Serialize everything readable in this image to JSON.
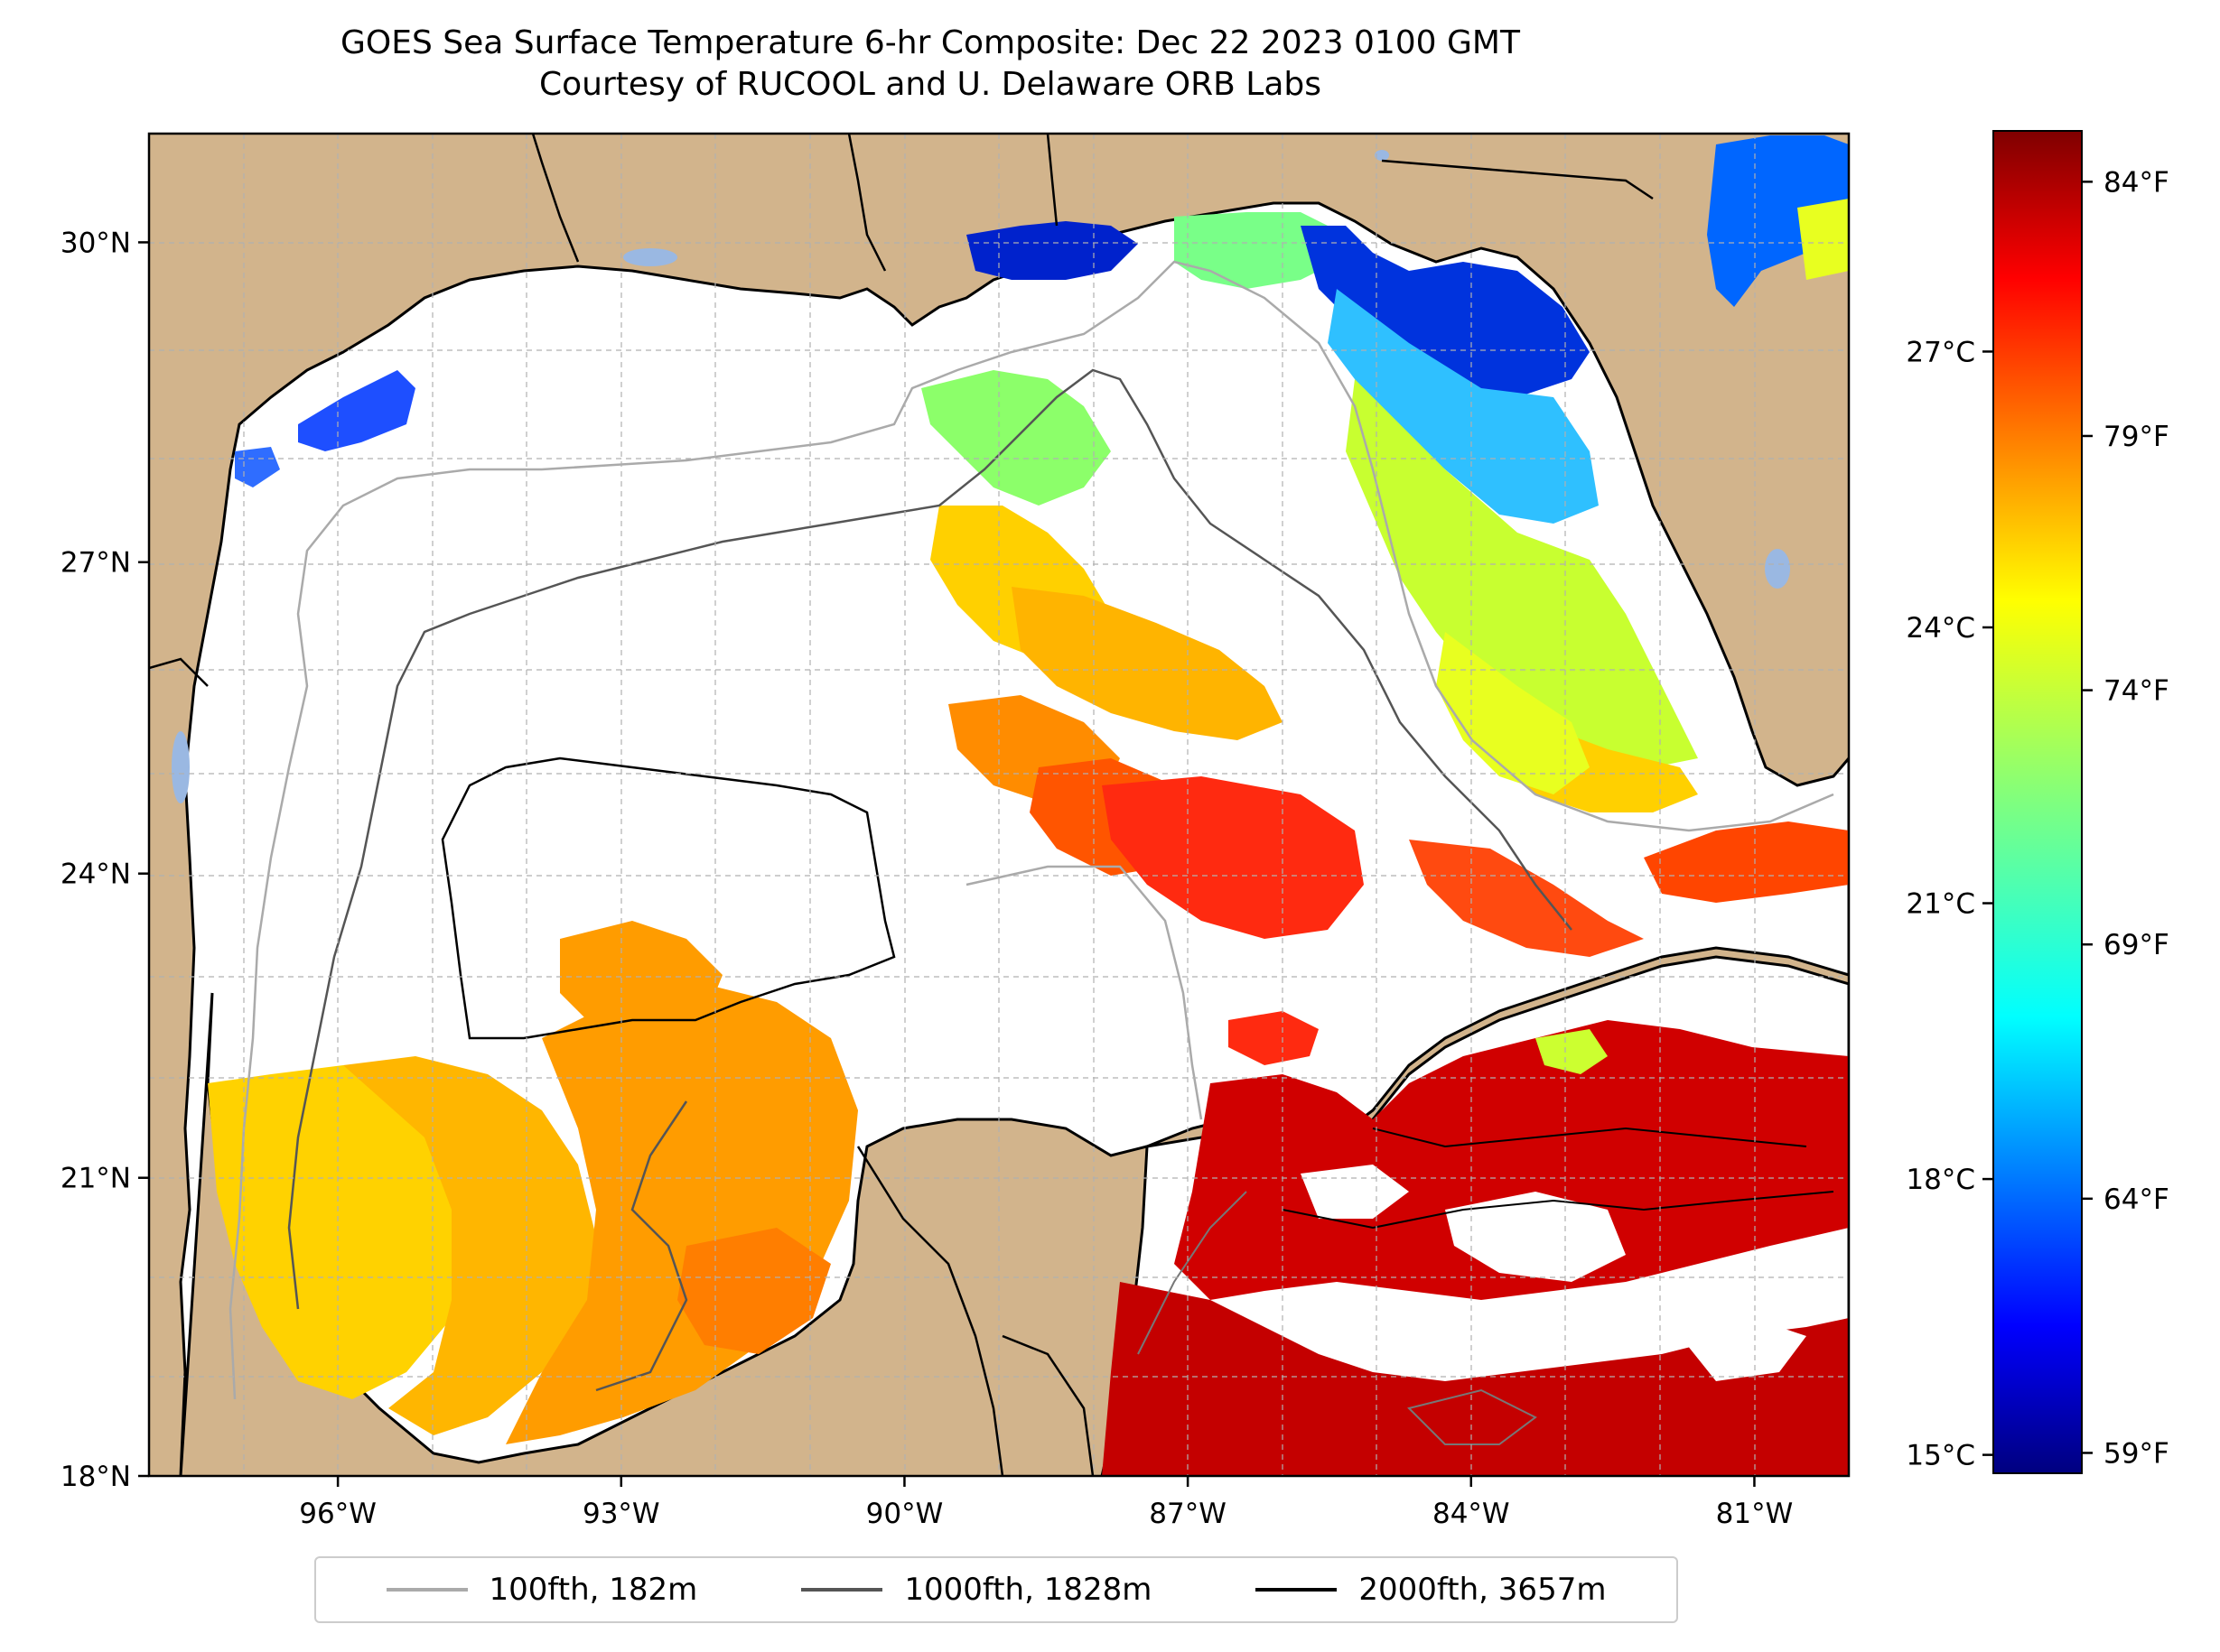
{
  "title_line1": "GOES Sea Surface Temperature 6-hr Composite: Dec 22 2023 0100 GMT",
  "title_line2": "Courtesy of RUCOOL and U. Delaware ORB Labs",
  "lat_ticks": [
    {
      "lat": 30,
      "label": "30°N"
    },
    {
      "lat": 27,
      "label": "27°N"
    },
    {
      "lat": 24,
      "label": "24°N"
    },
    {
      "lat": 21,
      "label": "21°N"
    },
    {
      "lat": 18,
      "label": "18°N"
    }
  ],
  "lon_ticks": [
    {
      "lon": -96,
      "label": "96°W"
    },
    {
      "lon": -93,
      "label": "93°W"
    },
    {
      "lon": -90,
      "label": "90°W"
    },
    {
      "lon": -87,
      "label": "87°W"
    },
    {
      "lon": -84,
      "label": "84°W"
    },
    {
      "lon": -81,
      "label": "81°W"
    }
  ],
  "map_extent": {
    "lon_min": -98,
    "lon_max": -80,
    "lat_min": 18,
    "lat_max": 31
  },
  "colorbar": {
    "celsius_ticks": [
      {
        "value": 27,
        "label": "27°C"
      },
      {
        "value": 24,
        "label": "24°C"
      },
      {
        "value": 21,
        "label": "21°C"
      },
      {
        "value": 18,
        "label": "18°C"
      },
      {
        "value": 15,
        "label": "15°C"
      }
    ],
    "fahrenheit_ticks": [
      {
        "value": 84,
        "label": "84°F"
      },
      {
        "value": 79,
        "label": "79°F"
      },
      {
        "value": 74,
        "label": "74°F"
      },
      {
        "value": 69,
        "label": "69°F"
      },
      {
        "value": 64,
        "label": "64°F"
      },
      {
        "value": 59,
        "label": "59°F"
      }
    ],
    "colormap": "jet",
    "range_f": [
      58.6,
      85
    ],
    "range_c": [
      14.8,
      29.4
    ]
  },
  "legend": [
    {
      "label": "100fth, 182m",
      "color": "#aaaaaa"
    },
    {
      "label": "1000fth, 1828m",
      "color": "#555555"
    },
    {
      "label": "2000fth, 3657m",
      "color": "#000000"
    }
  ],
  "colors": {
    "land": "#d2b48c",
    "ocean_no_data": "#ffffff",
    "lakes": "#9ab8e2",
    "grid": "#b0b0b0"
  }
}
